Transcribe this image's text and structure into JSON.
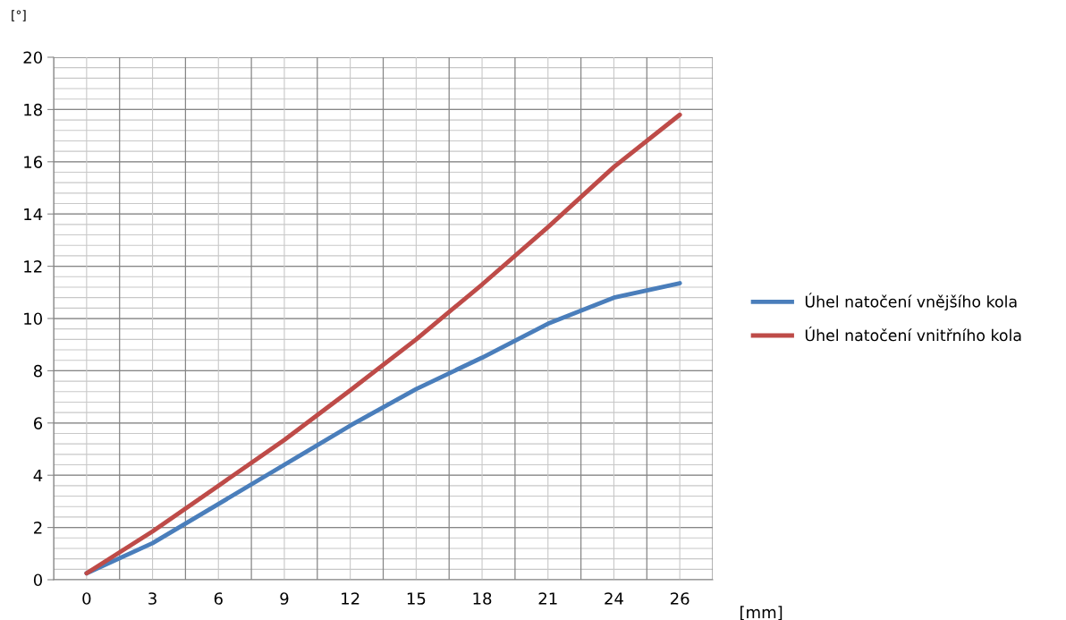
{
  "chart_data": {
    "type": "line",
    "xlabel": "[mm]",
    "ylabel": "[°]",
    "categories": [
      "0",
      "3",
      "6",
      "9",
      "12",
      "15",
      "18",
      "21",
      "24",
      "26"
    ],
    "series": [
      {
        "name": "Úhel natočení vnějšího kola",
        "color": "#4a7ebb",
        "values": [
          0.25,
          1.4,
          2.9,
          4.4,
          5.9,
          7.3,
          8.5,
          9.8,
          10.8,
          11.35
        ]
      },
      {
        "name": "Úhel natočení vnitřního kola",
        "color": "#be4b48",
        "values": [
          0.25,
          1.85,
          3.6,
          5.35,
          7.25,
          9.2,
          11.3,
          13.5,
          15.8,
          17.8
        ]
      }
    ],
    "ylim": [
      0,
      20
    ],
    "yticks": [
      0,
      2,
      4,
      6,
      8,
      10,
      12,
      14,
      16,
      18,
      20
    ],
    "grid": true,
    "legend": "right",
    "marker": "none",
    "line_style": "solid"
  }
}
